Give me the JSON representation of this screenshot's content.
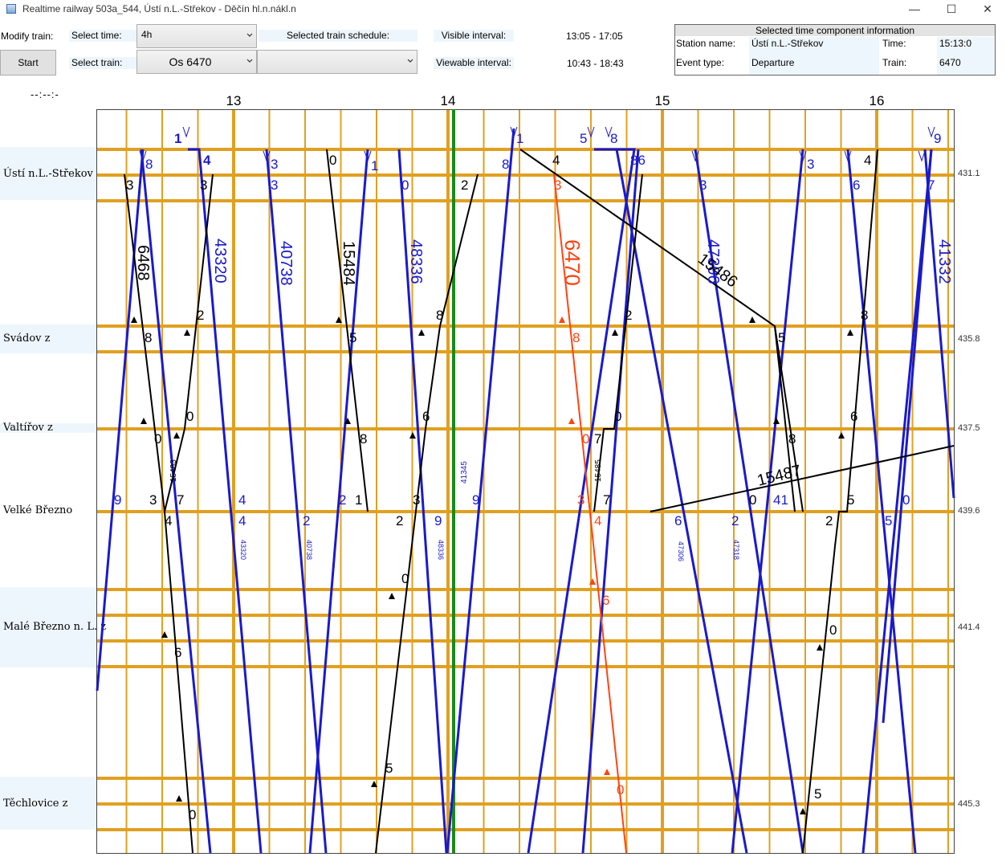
{
  "window": {
    "title": "Realtime railway 503a_544, Ústí n.L.-Střekov - Děčín hl.n.nákl.n",
    "minimize": "—",
    "maximize": "☐",
    "close": "✕"
  },
  "controls": {
    "modify_train_label": "Modify train:",
    "select_time_label": "Select time:",
    "select_time_value": "4h",
    "selected_schedule_label": "Selected train schedule:",
    "visible_interval_label": "Visible interval:",
    "visible_interval_value": "13:05 - 17:05",
    "start_button": "Start",
    "select_train_label": "Select train:",
    "select_train_value": "Os 6470",
    "schedule_value": "",
    "viewable_interval_label": "Viewable interval:",
    "viewable_interval_value": "10:43 - 18:43",
    "clock": "--:--:-"
  },
  "info": {
    "header": "Selected time component information",
    "station_label": "Station name:",
    "station_value": "Ústí n.L.-Střekov",
    "time_label": "Time:",
    "time_value": "15:13:0",
    "event_label": "Event type:",
    "event_value": "Departure",
    "train_label": "Train:",
    "train_value": "6470"
  },
  "graph": {
    "hours": [
      "13",
      "14",
      "15",
      "16"
    ],
    "stations": [
      {
        "name": "Ústí n.L.-Střekov",
        "km": "431.1"
      },
      {
        "name": "Svádov z",
        "km": "435.8"
      },
      {
        "name": "Valtířov z",
        "km": "437.5"
      },
      {
        "name": "Velké Březno",
        "km": "439.6"
      },
      {
        "name": "Malé Březno n. L. z",
        "km": "441.4"
      },
      {
        "name": "Těchlovice z",
        "km": "445.3"
      }
    ],
    "trains": [
      {
        "number": "6468",
        "color": "#000000"
      },
      {
        "number": "43320",
        "color": "#1a1acc"
      },
      {
        "number": "40738",
        "color": "#1a1acc"
      },
      {
        "number": "15484",
        "color": "#000000"
      },
      {
        "number": "48336",
        "color": "#1a1acc"
      },
      {
        "number": "6470",
        "color": "#ff4411"
      },
      {
        "number": "47306",
        "color": "#1a1acc"
      },
      {
        "number": "15486",
        "color": "#000000"
      },
      {
        "number": "41332",
        "color": "#1a1acc"
      },
      {
        "number": "15487",
        "color": "#000000"
      },
      {
        "number": "15483",
        "color": "#000000"
      },
      {
        "number": "15485",
        "color": "#000000"
      },
      {
        "number": "41345",
        "color": "#1a1acc"
      },
      {
        "number": "47318",
        "color": "#1a1acc"
      }
    ],
    "colors": {
      "grid": "#e0a020",
      "current_time": "#1a8a1a",
      "selected": "#ff4411",
      "freight": "#1a1acc",
      "passenger": "#000000"
    }
  }
}
